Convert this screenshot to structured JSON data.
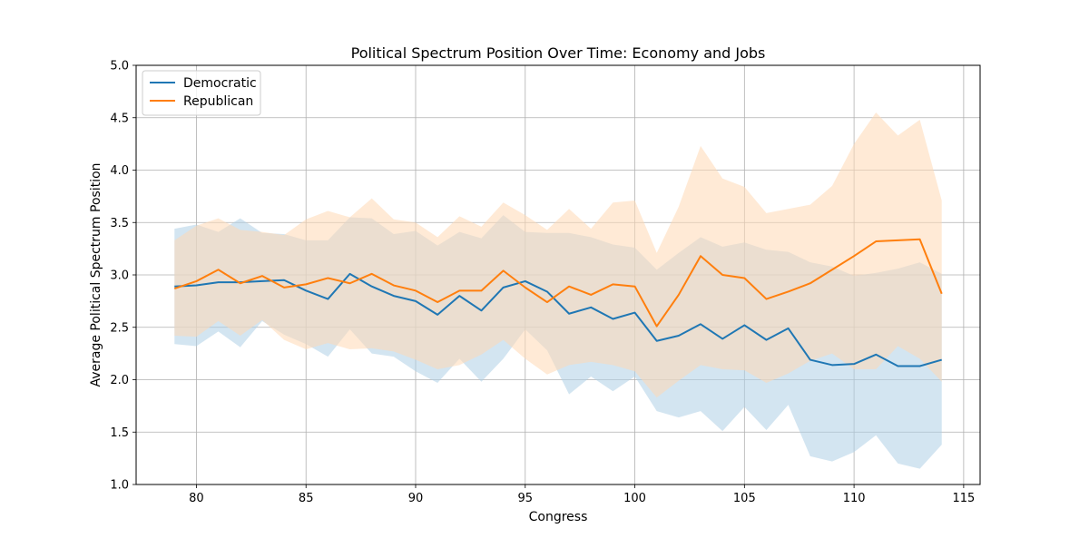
{
  "chart_data": {
    "type": "line",
    "title": "Political Spectrum Position Over Time: Economy and Jobs",
    "xlabel": "Congress",
    "ylabel": "Average Political Spectrum Position",
    "xlim": [
      77.25,
      115.75
    ],
    "ylim": [
      1.0,
      5.0
    ],
    "xticks": [
      80,
      85,
      90,
      95,
      100,
      105,
      110,
      115
    ],
    "yticks": [
      1.0,
      1.5,
      2.0,
      2.5,
      3.0,
      3.5,
      4.0,
      4.5,
      5.0
    ],
    "grid": true,
    "legend_position": "top-left",
    "x": [
      79,
      80,
      81,
      82,
      83,
      84,
      85,
      86,
      87,
      88,
      89,
      90,
      91,
      92,
      93,
      94,
      95,
      96,
      97,
      98,
      99,
      100,
      101,
      102,
      103,
      104,
      105,
      106,
      107,
      108,
      109,
      110,
      111,
      112,
      113,
      114
    ],
    "series": [
      {
        "name": "Democratic",
        "color": "#1f77b4",
        "band_color": "#aed0e6",
        "values": [
          2.89,
          2.9,
          2.93,
          2.93,
          2.94,
          2.95,
          2.85,
          2.77,
          3.01,
          2.89,
          2.8,
          2.75,
          2.62,
          2.8,
          2.66,
          2.88,
          2.94,
          2.84,
          2.63,
          2.69,
          2.58,
          2.64,
          2.37,
          2.42,
          2.53,
          2.39,
          2.52,
          2.38,
          2.49,
          2.19,
          2.14,
          2.15,
          2.24,
          2.13,
          2.13,
          2.19
        ],
        "lower": [
          2.34,
          2.32,
          2.46,
          2.31,
          2.56,
          2.43,
          2.34,
          2.22,
          2.48,
          2.25,
          2.22,
          2.08,
          1.97,
          2.2,
          1.98,
          2.2,
          2.48,
          2.28,
          1.86,
          2.03,
          1.89,
          2.03,
          1.7,
          1.64,
          1.7,
          1.51,
          1.74,
          1.52,
          1.76,
          1.27,
          1.22,
          1.31,
          1.47,
          1.2,
          1.15,
          1.38
        ],
        "upper": [
          3.44,
          3.48,
          3.41,
          3.54,
          3.4,
          3.39,
          3.33,
          3.33,
          3.55,
          3.54,
          3.39,
          3.42,
          3.28,
          3.41,
          3.35,
          3.57,
          3.41,
          3.4,
          3.4,
          3.36,
          3.29,
          3.26,
          3.05,
          3.21,
          3.36,
          3.27,
          3.31,
          3.24,
          3.22,
          3.12,
          3.08,
          2.99,
          3.02,
          3.06,
          3.12,
          3.01
        ]
      },
      {
        "name": "Republican",
        "color": "#ff7f0e",
        "band_color": "#ffd8b5",
        "values": [
          2.87,
          2.94,
          3.05,
          2.92,
          2.99,
          2.88,
          2.91,
          2.97,
          2.92,
          3.01,
          2.9,
          2.85,
          2.74,
          2.85,
          2.85,
          3.04,
          2.88,
          2.74,
          2.89,
          2.81,
          2.91,
          2.89,
          2.51,
          2.81,
          3.18,
          3.0,
          2.97,
          2.77,
          2.84,
          2.92,
          3.05,
          3.18,
          3.32,
          3.33,
          3.34,
          2.82
        ],
        "lower": [
          2.42,
          2.41,
          2.56,
          2.42,
          2.57,
          2.38,
          2.29,
          2.35,
          2.29,
          2.3,
          2.27,
          2.19,
          2.1,
          2.14,
          2.24,
          2.38,
          2.2,
          2.05,
          2.14,
          2.17,
          2.14,
          2.08,
          1.83,
          1.99,
          2.14,
          2.1,
          2.09,
          1.97,
          2.06,
          2.18,
          2.25,
          2.1,
          2.1,
          2.32,
          2.2,
          1.98
        ],
        "upper": [
          3.33,
          3.47,
          3.54,
          3.43,
          3.41,
          3.38,
          3.53,
          3.61,
          3.55,
          3.73,
          3.53,
          3.5,
          3.36,
          3.56,
          3.46,
          3.69,
          3.57,
          3.43,
          3.63,
          3.44,
          3.69,
          3.71,
          3.21,
          3.65,
          4.23,
          3.92,
          3.84,
          3.59,
          3.63,
          3.67,
          3.85,
          4.25,
          4.55,
          4.33,
          4.48,
          3.71
        ]
      }
    ]
  }
}
